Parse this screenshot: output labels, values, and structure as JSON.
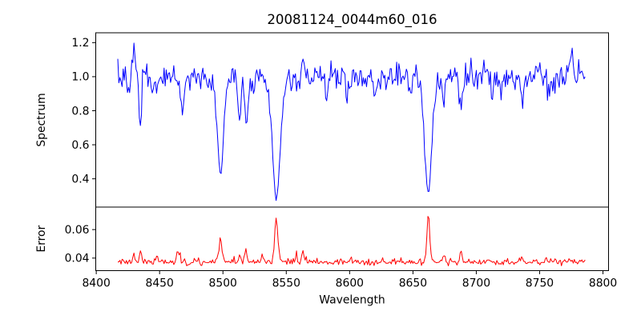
{
  "chart_data": {
    "type": "line",
    "title": "20081124_0044m60_016",
    "xlabel": "Wavelength",
    "grid": false,
    "legend": null,
    "x_start": 8417,
    "x_end": 8786,
    "x_step": 0.85,
    "xlim": [
      8399.6,
      8804.4
    ],
    "xticks": [
      8400,
      8450,
      8500,
      8550,
      8600,
      8650,
      8700,
      8750,
      8800
    ],
    "xtick_labels": [
      "8400",
      "8450",
      "8500",
      "8550",
      "8600",
      "8650",
      "8700",
      "8750",
      "8800"
    ],
    "noise_seed": 7,
    "panels": [
      {
        "name": "spectrum",
        "ylabel": "Spectrum",
        "line_color": "#0000ff",
        "ylim": [
          0.234,
          1.258
        ],
        "yticks": [
          0.4,
          0.6,
          0.8,
          1.0,
          1.2
        ],
        "ytick_labels": [
          "0.4",
          "0.6",
          "0.8",
          "1.0",
          "1.2"
        ],
        "continuum": 1.0,
        "noise_sigma": 0.038,
        "absorption_lines": [
          {
            "center": 8425.0,
            "depth": 0.12,
            "sigma": 1.0
          },
          {
            "center": 8434.8,
            "depth": 0.3,
            "sigma": 1.0
          },
          {
            "center": 8446.0,
            "depth": 0.1,
            "sigma": 1.2
          },
          {
            "center": 8468.0,
            "depth": 0.22,
            "sigma": 1.3
          },
          {
            "center": 8498.0,
            "depth": 0.56,
            "sigma": 2.4
          },
          {
            "center": 8513.0,
            "depth": 0.26,
            "sigma": 1.1
          },
          {
            "center": 8519.0,
            "depth": 0.26,
            "sigma": 1.2
          },
          {
            "center": 8542.1,
            "depth": 0.7,
            "sigma": 3.2
          },
          {
            "center": 8560.0,
            "depth": 0.08,
            "sigma": 1.2
          },
          {
            "center": 8582.0,
            "depth": 0.1,
            "sigma": 1.3
          },
          {
            "center": 8598.0,
            "depth": 0.12,
            "sigma": 1.3
          },
          {
            "center": 8620.0,
            "depth": 0.1,
            "sigma": 1.3
          },
          {
            "center": 8648.0,
            "depth": 0.1,
            "sigma": 1.2
          },
          {
            "center": 8662.1,
            "depth": 0.69,
            "sigma": 2.8
          },
          {
            "center": 8674.0,
            "depth": 0.12,
            "sigma": 1.2
          },
          {
            "center": 8688.0,
            "depth": 0.17,
            "sigma": 1.5
          },
          {
            "center": 8713.0,
            "depth": 0.1,
            "sigma": 1.2
          },
          {
            "center": 8736.0,
            "depth": 0.14,
            "sigma": 1.3
          },
          {
            "center": 8757.0,
            "depth": 0.09,
            "sigma": 1.2
          }
        ],
        "emission_spikes": [
          {
            "center": 8429.5,
            "height": 0.17,
            "sigma": 0.9
          },
          {
            "center": 8563.0,
            "height": 0.1,
            "sigma": 0.8
          },
          {
            "center": 8775.0,
            "height": 0.13,
            "sigma": 0.9
          }
        ]
      },
      {
        "name": "error",
        "ylabel": "Error",
        "line_color": "#ff0000",
        "ylim": [
          0.0312,
          0.0758
        ],
        "yticks": [
          0.04,
          0.06
        ],
        "ytick_labels": [
          "0.04",
          "0.06"
        ],
        "baseline": 0.0373,
        "noise_sigma": 0.0012,
        "peaks": [
          {
            "center": 8430.0,
            "height": 0.006,
            "sigma": 0.7
          },
          {
            "center": 8435.0,
            "height": 0.009,
            "sigma": 0.7
          },
          {
            "center": 8448.0,
            "height": 0.005,
            "sigma": 0.7
          },
          {
            "center": 8464.0,
            "height": 0.008,
            "sigma": 0.7
          },
          {
            "center": 8466.0,
            "height": 0.007,
            "sigma": 0.6
          },
          {
            "center": 8498.0,
            "height": 0.016,
            "sigma": 1.4
          },
          {
            "center": 8513.0,
            "height": 0.006,
            "sigma": 0.8
          },
          {
            "center": 8518.0,
            "height": 0.009,
            "sigma": 0.8
          },
          {
            "center": 8531.0,
            "height": 0.005,
            "sigma": 0.7
          },
          {
            "center": 8542.1,
            "height": 0.03,
            "sigma": 1.3
          },
          {
            "center": 8558.0,
            "height": 0.005,
            "sigma": 0.7
          },
          {
            "center": 8563.0,
            "height": 0.007,
            "sigma": 0.7
          },
          {
            "center": 8601.0,
            "height": 0.004,
            "sigma": 0.7
          },
          {
            "center": 8662.1,
            "height": 0.034,
            "sigma": 1.1
          },
          {
            "center": 8674.0,
            "height": 0.005,
            "sigma": 0.7
          },
          {
            "center": 8688.0,
            "height": 0.007,
            "sigma": 0.9
          },
          {
            "center": 8736.0,
            "height": 0.005,
            "sigma": 0.7
          },
          {
            "center": 8755.0,
            "height": 0.004,
            "sigma": 0.7
          }
        ]
      }
    ]
  }
}
